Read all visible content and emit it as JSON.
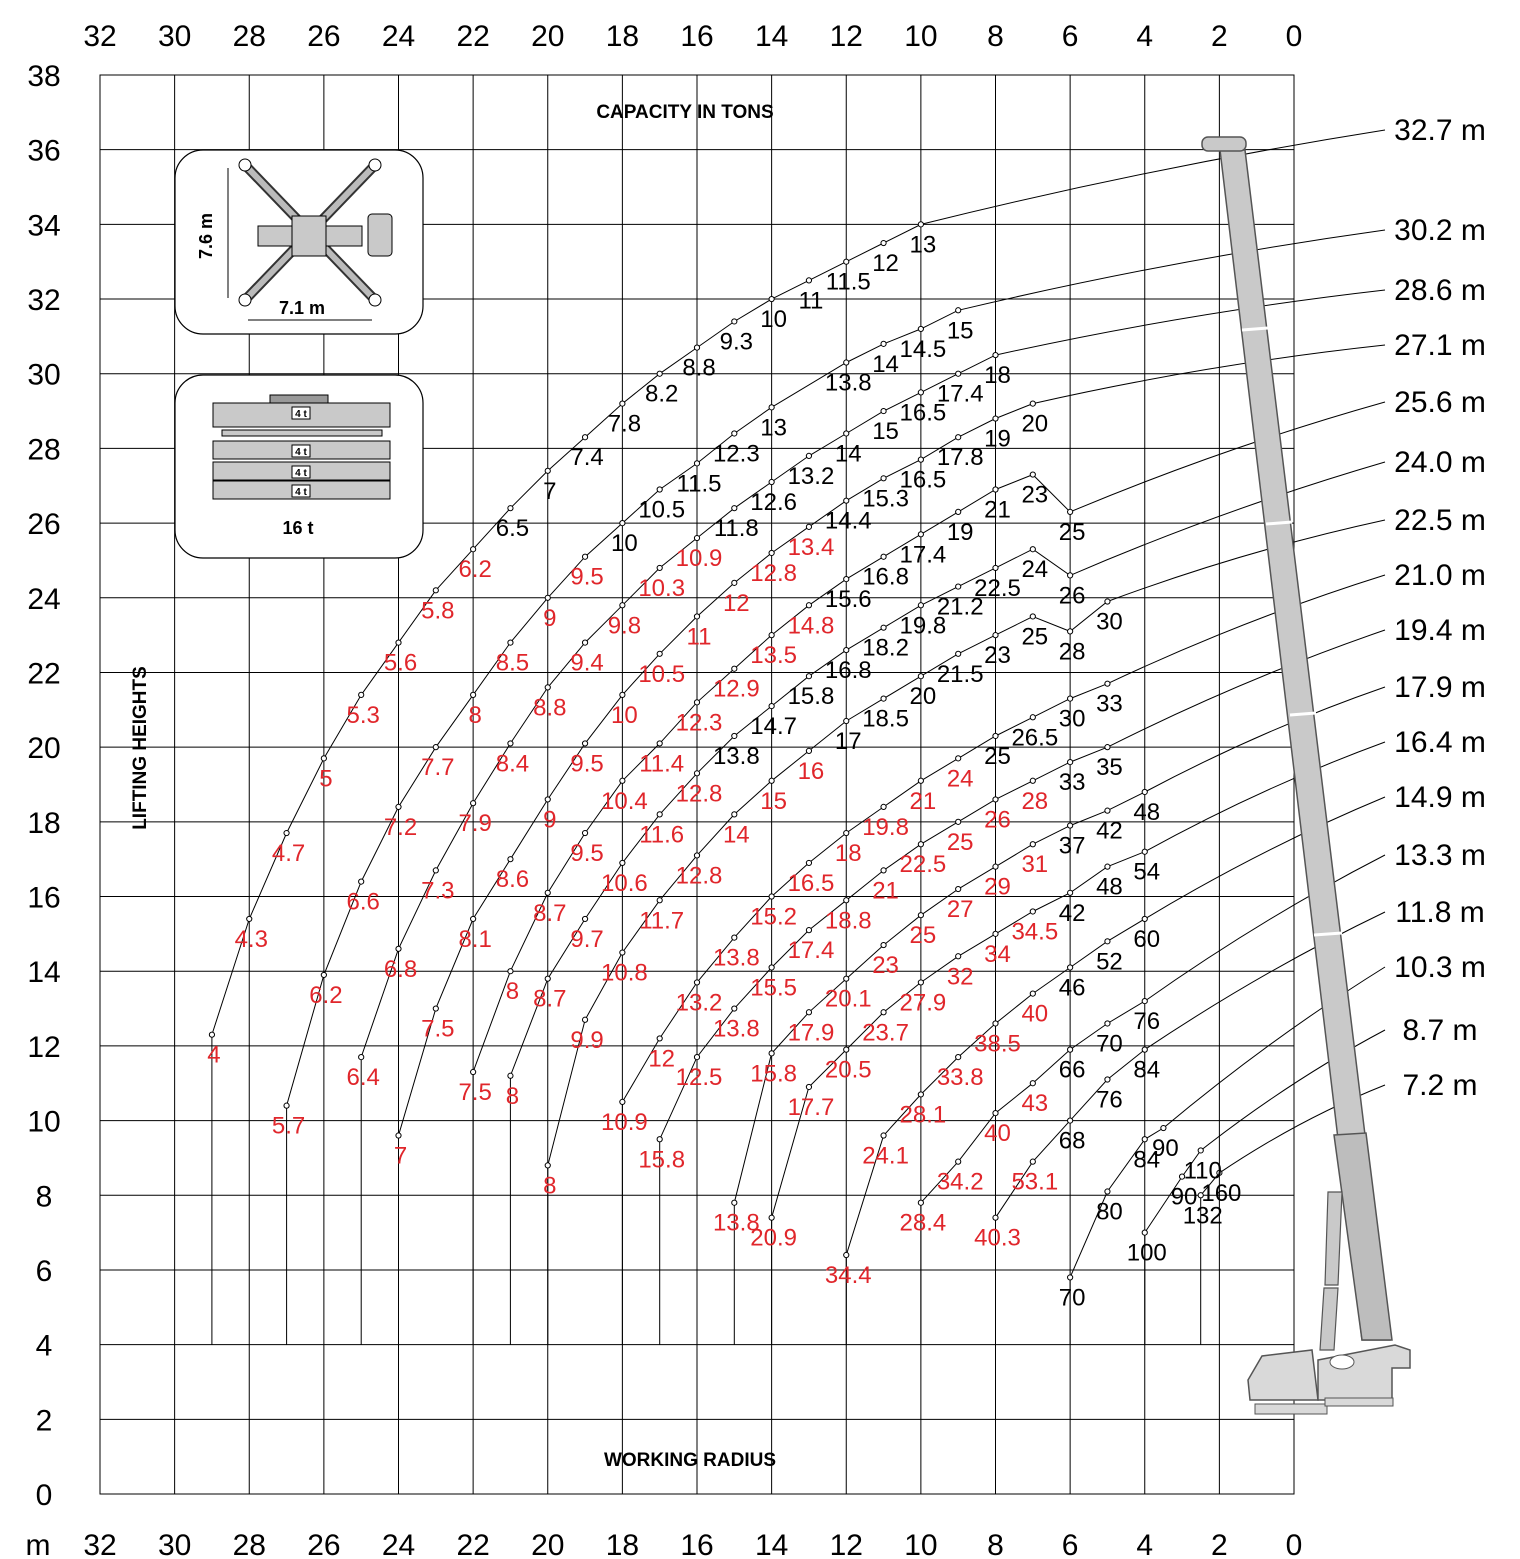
{
  "chart_data": {
    "type": "scatter",
    "title": "CAPACITY IN TONS",
    "xlabel": "WORKING RADIUS",
    "ylabel": "LIFTING HEIGHTS",
    "x_unit": "m",
    "xlim": [
      32,
      0
    ],
    "ylim": [
      0,
      38
    ],
    "x_ticks": [
      "32",
      "30",
      "28",
      "26",
      "24",
      "22",
      "20",
      "18",
      "16",
      "14",
      "12",
      "10",
      "8",
      "6",
      "4",
      "2",
      "0"
    ],
    "y_ticks": [
      "38",
      "36",
      "34",
      "32",
      "30",
      "28",
      "26",
      "24",
      "22",
      "20",
      "18",
      "16",
      "14",
      "12",
      "10",
      "8",
      "6",
      "4",
      "2",
      "0"
    ],
    "colors": {
      "standard": "#000000",
      "reduced": "#e0262b",
      "boom": "#c9c9c9"
    },
    "outrigger_box": {
      "width_label": "7.1 m",
      "length_label": "7.6 m"
    },
    "counterweight_box": {
      "block_label": "4 t",
      "total_label": "16 t"
    },
    "boom_lengths": [
      "32.7 m",
      "30.2 m",
      "28.6 m",
      "27.1 m",
      "25.6 m",
      "24.0 m",
      "22.5 m",
      "21.0 m",
      "19.4 m",
      "17.9 m",
      "16.4 m",
      "14.9 m",
      "13.3 m",
      "11.8 m",
      "10.3 m",
      "8.7 m",
      "7.2 m"
    ],
    "series": [
      {
        "name": "32.7 m",
        "points": [
          [
            10,
            34,
            "13"
          ],
          [
            11,
            33.5,
            "12"
          ],
          [
            12,
            33,
            "11.5"
          ],
          [
            13,
            32.5,
            "11"
          ],
          [
            14,
            32,
            "10"
          ],
          [
            15,
            31.4,
            "9.3"
          ],
          [
            16,
            30.7,
            "8.8"
          ],
          [
            17,
            30,
            "8.2"
          ],
          [
            18,
            29.2,
            "7.8"
          ],
          [
            19,
            28.3,
            "7.4"
          ],
          [
            20,
            27.4,
            "7"
          ],
          [
            21,
            26.4,
            "6.5"
          ],
          [
            22,
            25.3,
            "6.2"
          ],
          [
            23,
            24.2,
            "5.8"
          ],
          [
            24,
            22.8,
            "5.6"
          ],
          [
            25,
            21.4,
            "5.3"
          ],
          [
            26,
            19.7,
            "5"
          ],
          [
            27,
            17.7,
            "4.7"
          ],
          [
            28,
            15.4,
            "4.3"
          ],
          [
            29,
            12.3,
            "4"
          ]
        ]
      },
      {
        "name": "30.2 m",
        "points": [
          [
            9,
            31.7,
            "15"
          ],
          [
            10,
            31.2,
            "14.5"
          ],
          [
            11,
            30.8,
            "14"
          ],
          [
            12,
            30.3,
            "13.8"
          ],
          [
            14,
            29.1,
            "13"
          ],
          [
            15,
            28.4,
            "12.3"
          ],
          [
            16,
            27.6,
            "11.5"
          ],
          [
            17,
            26.9,
            "10.5"
          ],
          [
            18,
            26,
            "10"
          ],
          [
            19,
            25.1,
            "9.5"
          ],
          [
            20,
            24,
            "9"
          ],
          [
            21,
            22.8,
            "8.5"
          ],
          [
            22,
            21.4,
            "8"
          ],
          [
            23,
            20,
            "7.7"
          ],
          [
            24,
            18.4,
            "7.2"
          ],
          [
            25,
            16.4,
            "6.6"
          ],
          [
            26,
            13.9,
            "6.2"
          ],
          [
            27,
            10.4,
            "5.7"
          ]
        ]
      },
      {
        "name": "28.6 m",
        "points": [
          [
            8,
            30.5,
            "18"
          ],
          [
            9,
            30,
            "17.4"
          ],
          [
            10,
            29.5,
            "16.5"
          ],
          [
            11,
            29,
            "15"
          ],
          [
            12,
            28.4,
            "14"
          ],
          [
            13,
            27.8,
            "13.2"
          ],
          [
            14,
            27.1,
            "12.6"
          ],
          [
            15,
            26.4,
            "11.8"
          ],
          [
            16,
            25.6,
            "10.9"
          ],
          [
            17,
            24.8,
            "10.3"
          ],
          [
            18,
            23.8,
            "9.8"
          ],
          [
            19,
            22.8,
            "9.4"
          ],
          [
            20,
            21.6,
            "8.8"
          ],
          [
            21,
            20.1,
            "8.4"
          ],
          [
            22,
            18.5,
            "7.9"
          ],
          [
            23,
            16.7,
            "7.3"
          ],
          [
            24,
            14.6,
            "6.8"
          ],
          [
            25,
            11.7,
            "6.4"
          ]
        ]
      },
      {
        "name": "27.1 m",
        "points": [
          [
            7,
            29.2,
            "20"
          ],
          [
            8,
            28.8,
            "19"
          ],
          [
            9,
            28.3,
            "17.8"
          ],
          [
            10,
            27.7,
            "16.5"
          ],
          [
            11,
            27.2,
            "15.3"
          ],
          [
            12,
            26.6,
            "14.4"
          ],
          [
            13,
            25.9,
            "13.4"
          ],
          [
            14,
            25.2,
            "12.8"
          ],
          [
            15,
            24.4,
            "12"
          ],
          [
            16,
            23.5,
            "11"
          ],
          [
            17,
            22.5,
            "10.5"
          ],
          [
            18,
            21.4,
            "10"
          ],
          [
            19,
            20.1,
            "9.5"
          ],
          [
            20,
            18.6,
            "9"
          ],
          [
            21,
            17,
            "8.6"
          ],
          [
            22,
            15.4,
            "8.1"
          ],
          [
            23,
            13,
            "7.5"
          ],
          [
            24,
            9.6,
            "7"
          ]
        ]
      },
      {
        "name": "25.6 m",
        "points": [
          [
            6,
            26.3,
            "25"
          ],
          [
            7,
            27.3,
            "23"
          ],
          [
            8,
            26.9,
            "21"
          ],
          [
            9,
            26.3,
            "19"
          ],
          [
            10,
            25.7,
            "17.4"
          ],
          [
            11,
            25.1,
            "16.8"
          ],
          [
            12,
            24.5,
            "15.6"
          ],
          [
            13,
            23.8,
            "14.8"
          ],
          [
            14,
            23,
            "13.5"
          ],
          [
            15,
            22.1,
            "12.9"
          ],
          [
            16,
            21.2,
            "12.3"
          ],
          [
            17,
            20.1,
            "11.4"
          ],
          [
            18,
            19.1,
            "10.4"
          ],
          [
            19,
            17.7,
            "9.5"
          ],
          [
            20,
            16.1,
            "8.7"
          ],
          [
            21,
            14,
            "8"
          ],
          [
            22,
            11.3,
            "7.5"
          ]
        ]
      },
      {
        "name": "24.0 m",
        "points": [
          [
            6,
            24.6,
            "26"
          ],
          [
            7,
            25.3,
            "24"
          ],
          [
            8,
            24.8,
            "22.5"
          ],
          [
            9,
            24.3,
            "21.2"
          ],
          [
            10,
            23.8,
            "19.8"
          ],
          [
            11,
            23.2,
            "18.2"
          ],
          [
            12,
            22.6,
            "16.8"
          ],
          [
            13,
            21.9,
            "15.8"
          ],
          [
            14,
            21.1,
            "14.7"
          ],
          [
            15,
            20.3,
            "13.8"
          ],
          [
            16,
            19.3,
            "12.8"
          ],
          [
            17,
            18.2,
            "11.6"
          ],
          [
            18,
            16.9,
            "10.6"
          ],
          [
            19,
            15.4,
            "9.7"
          ],
          [
            20,
            13.8,
            "8.7"
          ],
          [
            21,
            11.2,
            "8"
          ]
        ]
      },
      {
        "name": "22.5 m",
        "points": [
          [
            5,
            23.9,
            "30"
          ],
          [
            6,
            23.1,
            "28"
          ],
          [
            7,
            23.5,
            "25"
          ],
          [
            8,
            23,
            "23"
          ],
          [
            9,
            22.5,
            "21.5"
          ],
          [
            10,
            21.9,
            "20"
          ],
          [
            11,
            21.3,
            "18.5"
          ],
          [
            12,
            20.7,
            "17"
          ],
          [
            13,
            19.9,
            "16"
          ],
          [
            14,
            19.1,
            "15"
          ],
          [
            15,
            18.2,
            "14"
          ],
          [
            16,
            17.1,
            "12.8"
          ],
          [
            17,
            15.9,
            "11.7"
          ],
          [
            18,
            14.5,
            "10.8"
          ],
          [
            19,
            12.7,
            "9.9"
          ],
          [
            20,
            8.8,
            "8"
          ]
        ]
      },
      {
        "name": "21.0 m",
        "points": [
          [
            5,
            21.7,
            "33"
          ],
          [
            6,
            21.3,
            "30"
          ],
          [
            7,
            20.8,
            "26.5"
          ],
          [
            8,
            20.3,
            "25"
          ],
          [
            9,
            19.7,
            "24"
          ],
          [
            10,
            19.1,
            "21"
          ],
          [
            11,
            18.4,
            "19.8"
          ],
          [
            12,
            17.7,
            "18"
          ],
          [
            13,
            16.9,
            "16.5"
          ],
          [
            14,
            16,
            "15.2"
          ],
          [
            15,
            14.9,
            "13.8"
          ],
          [
            16,
            13.7,
            "13.2"
          ],
          [
            17,
            12.2,
            "12"
          ],
          [
            18,
            10.5,
            "10.9"
          ]
        ]
      },
      {
        "name": "19.4 m",
        "points": [
          [
            5,
            20,
            "35"
          ],
          [
            6,
            19.6,
            "33"
          ],
          [
            7,
            19.1,
            "28"
          ],
          [
            8,
            18.6,
            "26"
          ],
          [
            9,
            18,
            "25"
          ],
          [
            10,
            17.4,
            "22.5"
          ],
          [
            11,
            16.7,
            "21"
          ],
          [
            12,
            15.9,
            "18.8"
          ],
          [
            13,
            15.1,
            "17.4"
          ],
          [
            14,
            14.1,
            "15.5"
          ],
          [
            15,
            13,
            "13.8"
          ],
          [
            16,
            11.7,
            "12.5"
          ],
          [
            17,
            9.5,
            "15.8"
          ]
        ]
      },
      {
        "name": "17.9 m",
        "points": [
          [
            4,
            18.8,
            "48"
          ],
          [
            5,
            18.3,
            "42"
          ],
          [
            6,
            17.9,
            "37"
          ],
          [
            7,
            17.4,
            "31"
          ],
          [
            8,
            16.8,
            "29"
          ],
          [
            9,
            16.2,
            "27"
          ],
          [
            10,
            15.5,
            "25"
          ],
          [
            11,
            14.7,
            "23"
          ],
          [
            12,
            13.8,
            "20.1"
          ],
          [
            13,
            12.9,
            "17.9"
          ],
          [
            14,
            11.8,
            "15.8"
          ],
          [
            15,
            7.8,
            "13.8"
          ]
        ]
      },
      {
        "name": "16.4 m",
        "points": [
          [
            4,
            17.2,
            "54"
          ],
          [
            5,
            16.8,
            "48"
          ],
          [
            6,
            16.1,
            "42"
          ],
          [
            7,
            15.6,
            "34.5"
          ],
          [
            8,
            15,
            "34"
          ],
          [
            9,
            14.4,
            "32"
          ],
          [
            10,
            13.7,
            "27.9"
          ],
          [
            11,
            12.9,
            "23.7"
          ],
          [
            12,
            11.9,
            "20.5"
          ],
          [
            13,
            10.9,
            "17.7"
          ],
          [
            14,
            7.4,
            "20.9"
          ]
        ]
      },
      {
        "name": "14.9 m",
        "points": [
          [
            4,
            15.4,
            "60"
          ],
          [
            5,
            14.8,
            "52"
          ],
          [
            6,
            14.1,
            "46"
          ],
          [
            7,
            13.4,
            "40"
          ],
          [
            8,
            12.6,
            "38.5"
          ],
          [
            9,
            11.7,
            "33.8"
          ],
          [
            10,
            10.7,
            "28.1"
          ],
          [
            11,
            9.6,
            "24.1"
          ],
          [
            12,
            6.4,
            "34.4"
          ]
        ]
      },
      {
        "name": "13.3 m",
        "points": [
          [
            4,
            13.2,
            "76"
          ],
          [
            5,
            12.6,
            "70"
          ],
          [
            6,
            11.9,
            "66"
          ],
          [
            7,
            11,
            "43"
          ],
          [
            8,
            10.2,
            "40"
          ],
          [
            9,
            8.9,
            "34.2"
          ],
          [
            10,
            7.8,
            "28.4"
          ]
        ]
      },
      {
        "name": "11.8 m",
        "points": [
          [
            4,
            11.9,
            "84"
          ],
          [
            5,
            11.1,
            "76"
          ],
          [
            6,
            10,
            "68"
          ],
          [
            7,
            8.9,
            "53.1"
          ],
          [
            8,
            7.4,
            "40.3"
          ]
        ]
      },
      {
        "name": "10.3 m",
        "points": [
          [
            3.5,
            9.8,
            "90"
          ],
          [
            4,
            9.5,
            "84"
          ],
          [
            5,
            8.1,
            "80"
          ],
          [
            6,
            5.8,
            "70"
          ]
        ]
      },
      {
        "name": "8.7 m",
        "points": [
          [
            2.5,
            9.2,
            "110"
          ],
          [
            3,
            8.5,
            "90"
          ],
          [
            4,
            7,
            "100"
          ]
        ]
      },
      {
        "name": "7.2 m",
        "points": [
          [
            2,
            8.6,
            "160"
          ],
          [
            2.5,
            8,
            "132"
          ]
        ]
      }
    ]
  }
}
